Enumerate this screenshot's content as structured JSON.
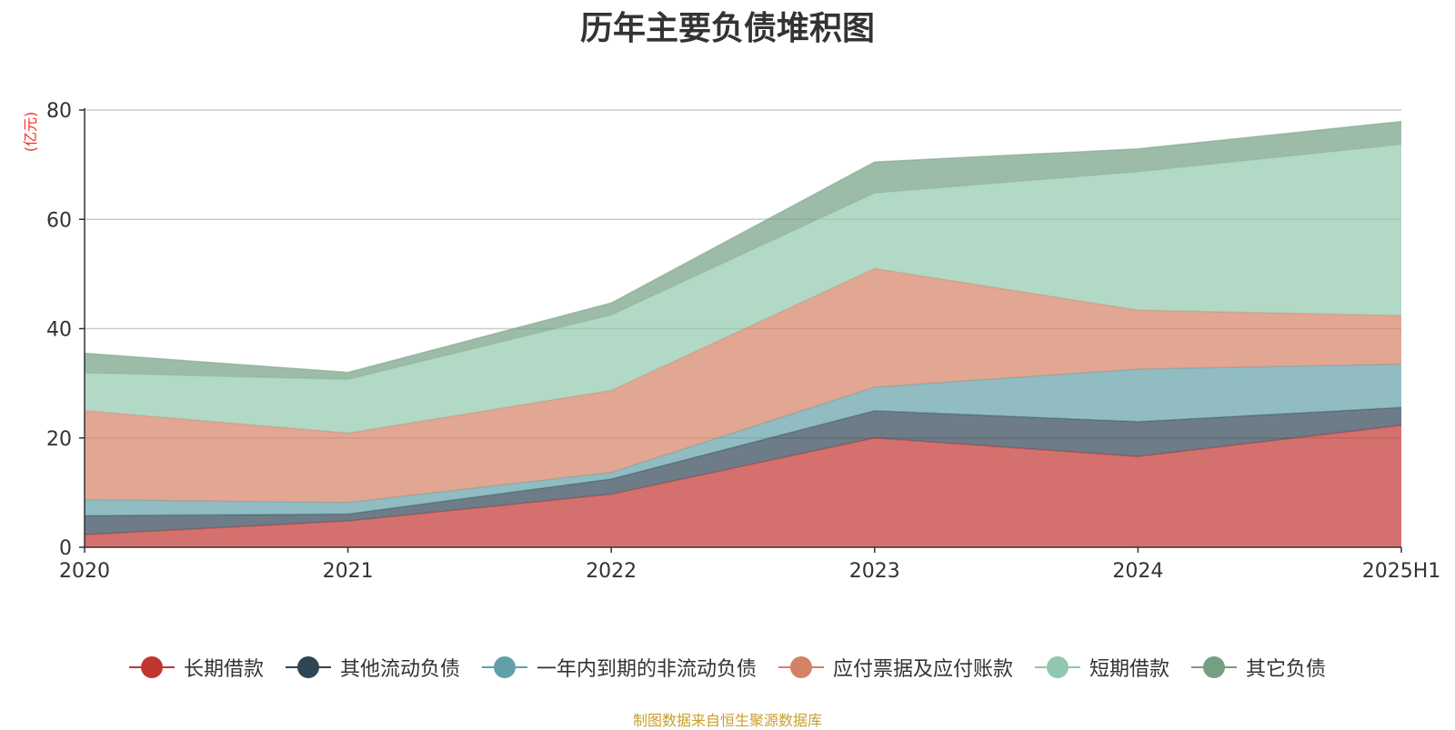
{
  "chart_data": {
    "type": "area",
    "stacked": true,
    "title": "历年主要负债堆积图",
    "unit_label": "(亿元)",
    "categories": [
      "2020",
      "2021",
      "2022",
      "2023",
      "2024",
      "2025H1"
    ],
    "ylim": [
      0,
      80
    ],
    "yticks": [
      0,
      20,
      40,
      60,
      80
    ],
    "grid": true,
    "legend_position": "bottom",
    "series": [
      {
        "name": "长期借款",
        "color": "#c23531",
        "values": [
          2.3,
          4.8,
          9.7,
          20.0,
          16.6,
          22.3
        ]
      },
      {
        "name": "其他流动负债",
        "color": "#2f4554",
        "values": [
          3.5,
          1.3,
          2.8,
          5.0,
          6.4,
          3.3
        ]
      },
      {
        "name": "一年内到期的非流动负债",
        "color": "#61a0a8",
        "values": [
          2.9,
          2.1,
          1.2,
          4.3,
          9.6,
          7.9
        ]
      },
      {
        "name": "应付票据及应付账款",
        "color": "#d48265",
        "values": [
          16.3,
          12.7,
          15.0,
          21.7,
          10.8,
          8.9
        ]
      },
      {
        "name": "短期借款",
        "color": "#91c7ae",
        "values": [
          6.9,
          9.8,
          13.8,
          13.8,
          25.3,
          31.3
        ]
      },
      {
        "name": "其它负债",
        "color": "#749f83",
        "values": [
          3.6,
          1.3,
          2.2,
          5.7,
          4.2,
          4.2
        ]
      }
    ]
  },
  "footer": {
    "source": "制图数据来自恒生聚源数据库"
  }
}
